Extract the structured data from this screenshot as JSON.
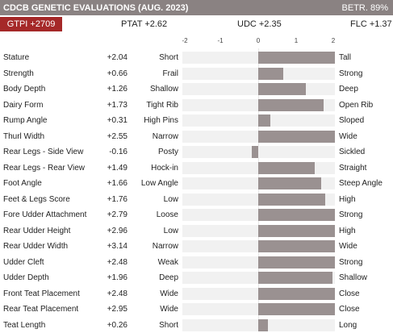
{
  "header": {
    "title": "CDCB GENETIC EVALUATIONS (AUG. 2023)",
    "reliability": "BETR. 89%"
  },
  "summary": {
    "gtpi": "GTPI +2709",
    "ptat": "PTAT +2.62",
    "udc": "UDC +2.35",
    "flc": "FLC +1.37"
  },
  "chart_data": {
    "type": "bar",
    "xlim": [
      -2,
      2
    ],
    "tick_labels": [
      "-2",
      "-1",
      "0",
      "1",
      "2"
    ],
    "colors": {
      "bar": "#9a9191",
      "track": "#f1f1f1"
    },
    "rows": [
      {
        "trait": "Stature",
        "value": 2.04,
        "value_label": "+2.04",
        "low": "Short",
        "high": "Tall"
      },
      {
        "trait": "Strength",
        "value": 0.66,
        "value_label": "+0.66",
        "low": "Frail",
        "high": "Strong"
      },
      {
        "trait": "Body Depth",
        "value": 1.26,
        "value_label": "+1.26",
        "low": "Shallow",
        "high": "Deep"
      },
      {
        "trait": "Dairy Form",
        "value": 1.73,
        "value_label": "+1.73",
        "low": "Tight Rib",
        "high": "Open Rib"
      },
      {
        "trait": "Rump Angle",
        "value": 0.31,
        "value_label": "+0.31",
        "low": "High Pins",
        "high": "Sloped"
      },
      {
        "trait": "Thurl Width",
        "value": 2.55,
        "value_label": "+2.55",
        "low": "Narrow",
        "high": "Wide"
      },
      {
        "trait": "Rear Legs - Side View",
        "value": -0.16,
        "value_label": "-0.16",
        "low": "Posty",
        "high": "Sickled"
      },
      {
        "trait": "Rear Legs - Rear View",
        "value": 1.49,
        "value_label": "+1.49",
        "low": "Hock-in",
        "high": "Straight"
      },
      {
        "trait": "Foot Angle",
        "value": 1.66,
        "value_label": "+1.66",
        "low": "Low Angle",
        "high": "Steep Angle"
      },
      {
        "trait": "Feet & Legs Score",
        "value": 1.76,
        "value_label": "+1.76",
        "low": "Low",
        "high": "High"
      },
      {
        "trait": "Fore Udder Attachment",
        "value": 2.79,
        "value_label": "+2.79",
        "low": "Loose",
        "high": "Strong"
      },
      {
        "trait": "Rear Udder Height",
        "value": 2.96,
        "value_label": "+2.96",
        "low": "Low",
        "high": "High"
      },
      {
        "trait": "Rear Udder Width",
        "value": 3.14,
        "value_label": "+3.14",
        "low": "Narrow",
        "high": "Wide"
      },
      {
        "trait": "Udder Cleft",
        "value": 2.48,
        "value_label": "+2.48",
        "low": "Weak",
        "high": "Strong"
      },
      {
        "trait": "Udder Depth",
        "value": 1.96,
        "value_label": "+1.96",
        "low": "Deep",
        "high": "Shallow"
      },
      {
        "trait": "Front Teat Placement",
        "value": 2.48,
        "value_label": "+2.48",
        "low": "Wide",
        "high": "Close"
      },
      {
        "trait": "Rear Teat Placement",
        "value": 2.95,
        "value_label": "+2.95",
        "low": "Wide",
        "high": "Close"
      },
      {
        "trait": "Teat Length",
        "value": 0.26,
        "value_label": "+0.26",
        "low": "Short",
        "high": "Long"
      }
    ]
  }
}
